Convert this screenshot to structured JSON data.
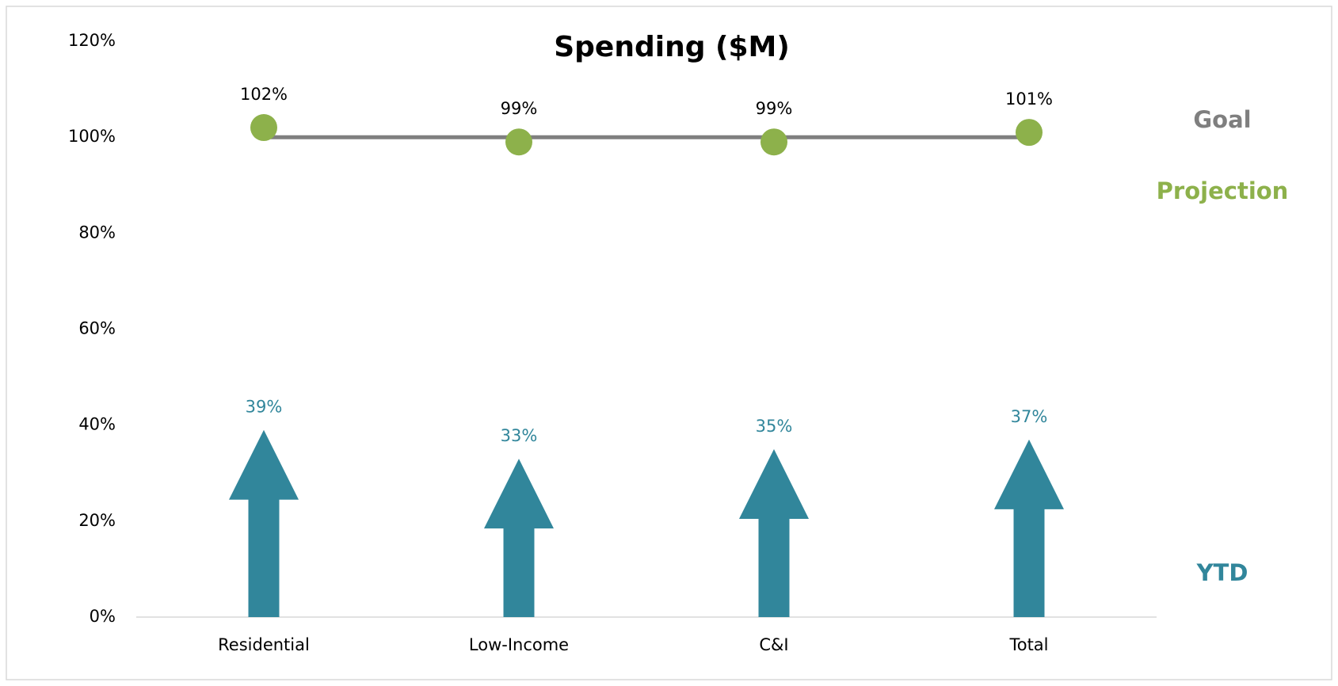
{
  "chart_data": {
    "type": "bar",
    "title": "Spending ($M)",
    "categories": [
      "Residential",
      "Low-Income",
      "C&I",
      "Total"
    ],
    "series": [
      {
        "name": "Goal",
        "color": "#7f7f7f",
        "values": [
          100,
          100,
          100,
          100
        ]
      },
      {
        "name": "Projection",
        "color": "#8db14b",
        "values": [
          102,
          99,
          99,
          101
        ],
        "value_labels": [
          "102%",
          "99%",
          "99%",
          "101%"
        ]
      },
      {
        "name": "YTD",
        "color": "#31869b",
        "values": [
          39,
          33,
          35,
          37
        ],
        "value_labels": [
          "39%",
          "33%",
          "35%",
          "37%"
        ]
      }
    ],
    "ylim": [
      0,
      120
    ],
    "yticks": [
      {
        "value": 0,
        "label": "0%"
      },
      {
        "value": 20,
        "label": "20%"
      },
      {
        "value": 40,
        "label": "40%"
      },
      {
        "value": 60,
        "label": "60%"
      },
      {
        "value": 80,
        "label": "80%"
      },
      {
        "value": 100,
        "label": "100%"
      },
      {
        "value": 120,
        "label": "120%"
      }
    ],
    "grid": false
  }
}
